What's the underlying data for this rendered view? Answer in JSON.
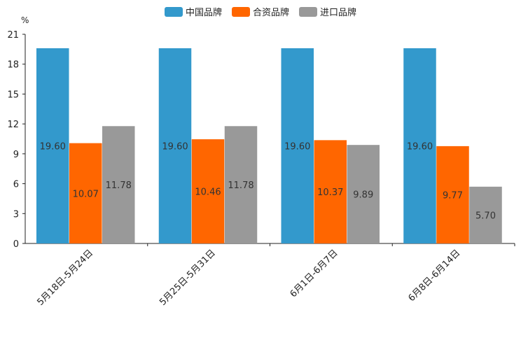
{
  "chart_data": {
    "type": "bar",
    "unit": "%",
    "categories": [
      "5月18日-5月24日",
      "5月25日-5月31日",
      "6月1日-6月7日",
      "6月8日-6月14日"
    ],
    "series": [
      {
        "name": "中国品牌",
        "color": "#3399cc",
        "values": [
          19.6,
          19.6,
          19.6,
          19.6
        ]
      },
      {
        "name": "合资品牌",
        "color": "#ff6600",
        "values": [
          10.07,
          10.46,
          10.37,
          9.77
        ]
      },
      {
        "name": "进口品牌",
        "color": "#999999",
        "values": [
          11.78,
          11.78,
          9.89,
          5.7
        ]
      }
    ],
    "ylim": [
      0,
      21
    ],
    "yticks": [
      0,
      3,
      6,
      9,
      12,
      15,
      18,
      21
    ],
    "legend_position": "top-center"
  }
}
